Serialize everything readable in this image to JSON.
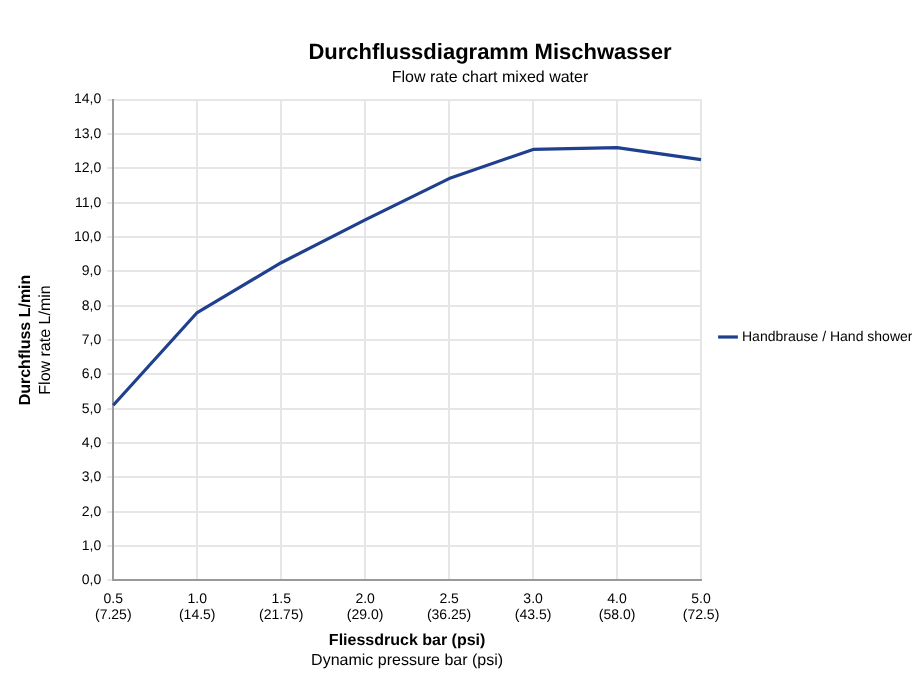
{
  "chart_data": {
    "type": "line",
    "title": "Durchflussdiagramm Mischwasser",
    "subtitle": "Flow rate chart mixed water",
    "xlabel": "Fliessdruck bar (psi)\nDynamic pressure bar (psi)",
    "ylabel": "Durchfluss L/min\nFlow rate L/min",
    "categories": [
      "0.5\n(7.25)",
      "1.0\n(14.5)",
      "1.5\n(21.75)",
      "2.0\n(29.0)",
      "2.5\n(36.25)",
      "3.0\n(43.5)",
      "4.0\n(58.0)",
      "5.0\n(72.5)"
    ],
    "series": [
      {
        "name": "Handbrause / Hand shower",
        "color": "#1f3f8f",
        "values": [
          5.1,
          7.8,
          9.25,
          10.5,
          11.7,
          12.55,
          12.6,
          12.25
        ]
      }
    ],
    "ylim": [
      0,
      14
    ],
    "yticks": [
      {
        "value": 0,
        "label": "0,0"
      },
      {
        "value": 1,
        "label": "1,0"
      },
      {
        "value": 2,
        "label": "2,0"
      },
      {
        "value": 3,
        "label": "3,0"
      },
      {
        "value": 4,
        "label": "4,0"
      },
      {
        "value": 5,
        "label": "5,0"
      },
      {
        "value": 6,
        "label": "6,0"
      },
      {
        "value": 7,
        "label": "7,0"
      },
      {
        "value": 8,
        "label": "8,0"
      },
      {
        "value": 9,
        "label": "9,0"
      },
      {
        "value": 10,
        "label": "10,0"
      },
      {
        "value": 11,
        "label": "11,0"
      },
      {
        "value": 12,
        "label": "12,0"
      },
      {
        "value": 13,
        "label": "13,0"
      },
      {
        "value": 14,
        "label": "14,0"
      }
    ],
    "grid": true,
    "legend": "right",
    "marker": "none",
    "line_style": "solid"
  }
}
